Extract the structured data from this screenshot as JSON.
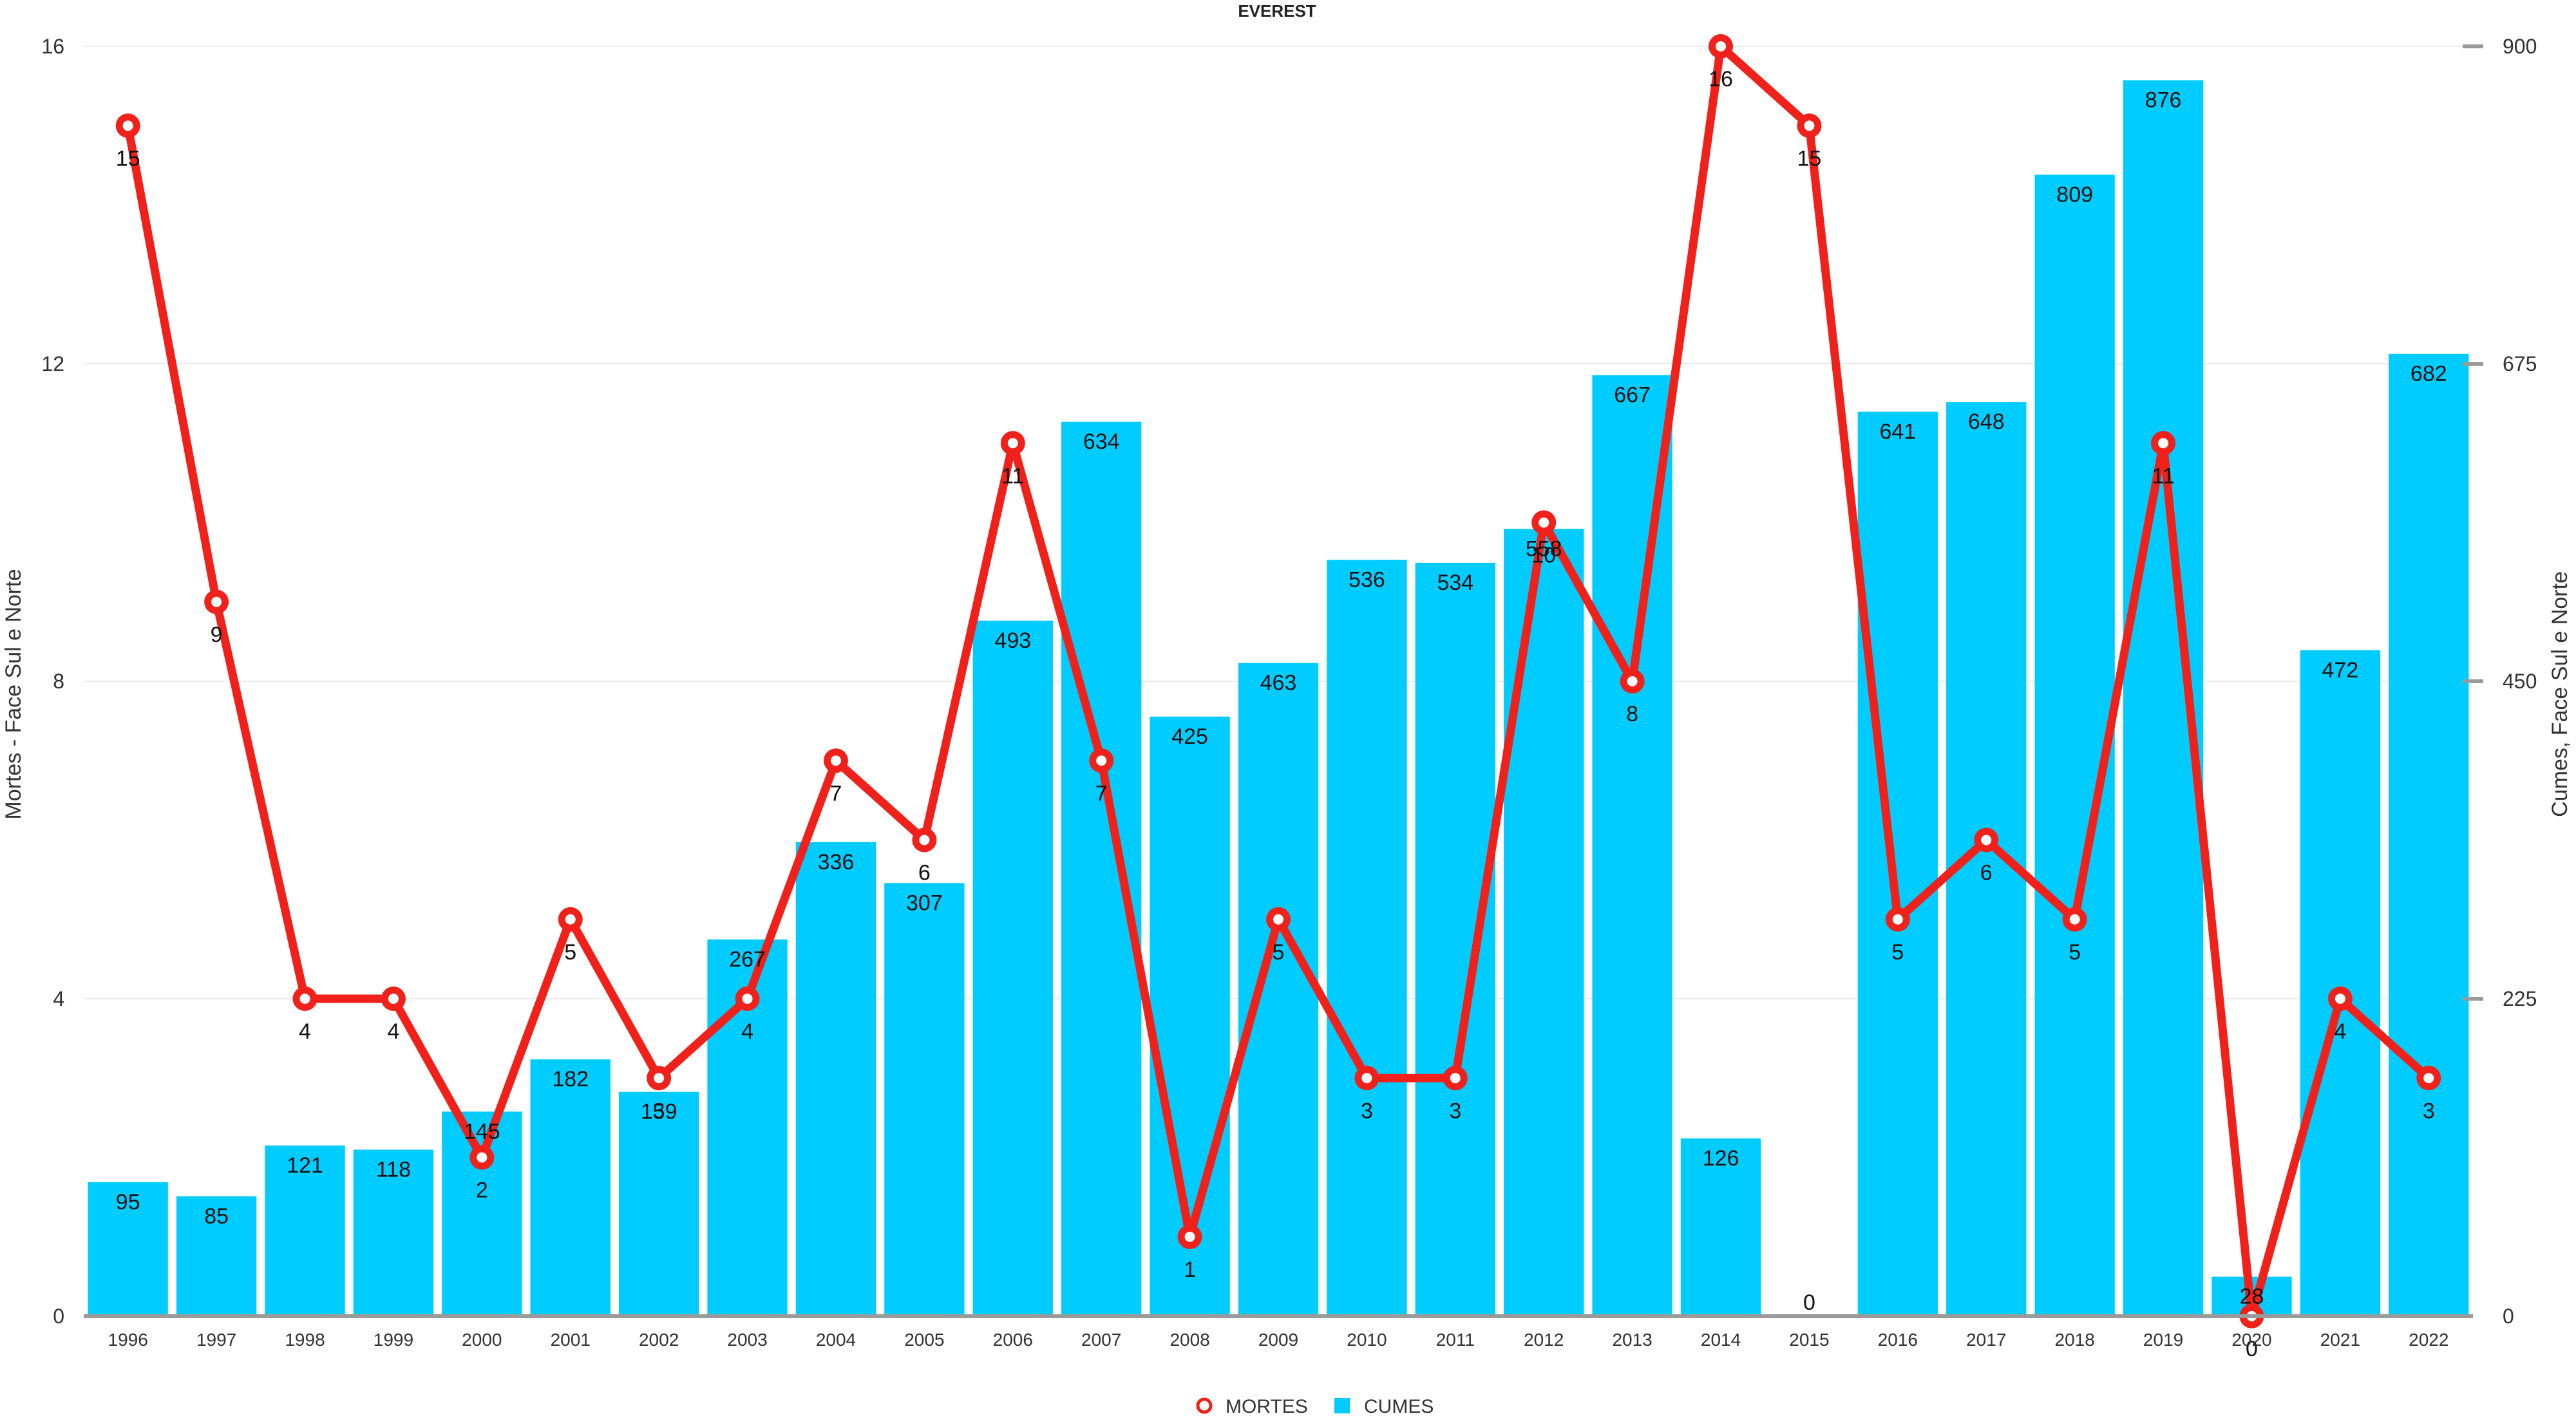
{
  "chart_data": {
    "type": "bar",
    "title": "EVEREST",
    "categories": [
      "1996",
      "1997",
      "1998",
      "1999",
      "2000",
      "2001",
      "2002",
      "2003",
      "2004",
      "2005",
      "2006",
      "2007",
      "2008",
      "2009",
      "2010",
      "2011",
      "2012",
      "2013",
      "2014",
      "2015",
      "2016",
      "2017",
      "2018",
      "2019",
      "2020",
      "2021",
      "2022"
    ],
    "series": [
      {
        "name": "CUMES",
        "type": "bar",
        "axis": "right",
        "color": "#00ccff",
        "values": [
          95,
          85,
          121,
          118,
          145,
          182,
          159,
          267,
          336,
          307,
          493,
          634,
          425,
          463,
          536,
          534,
          558,
          667,
          126,
          0,
          641,
          648,
          809,
          876,
          28,
          472,
          682
        ]
      },
      {
        "name": "MORTES",
        "type": "line",
        "axis": "left",
        "color": "#f0211a",
        "values": [
          15,
          9,
          4,
          4,
          2,
          5,
          3,
          4,
          7,
          6,
          11,
          7,
          1,
          5,
          3,
          3,
          10,
          8,
          16,
          15,
          5,
          6,
          5,
          11,
          0,
          4,
          3
        ]
      }
    ],
    "y_left": {
      "label": "Mortes - Face Sul e Norte",
      "range": [
        0,
        16
      ],
      "ticks": [
        "0",
        "4",
        "8",
        "12",
        "16"
      ]
    },
    "y_right": {
      "label": "Cumes, Face Sul e Norte",
      "range": [
        0,
        900
      ],
      "ticks": [
        "0",
        "225",
        "450",
        "675",
        "900"
      ]
    },
    "grid": true,
    "legend": {
      "position": "bottom-center",
      "items": [
        {
          "label": "MORTES",
          "marker": "circle",
          "color": "#f0211a"
        },
        {
          "label": "CUMES",
          "marker": "square",
          "color": "#00ccff"
        }
      ]
    }
  }
}
